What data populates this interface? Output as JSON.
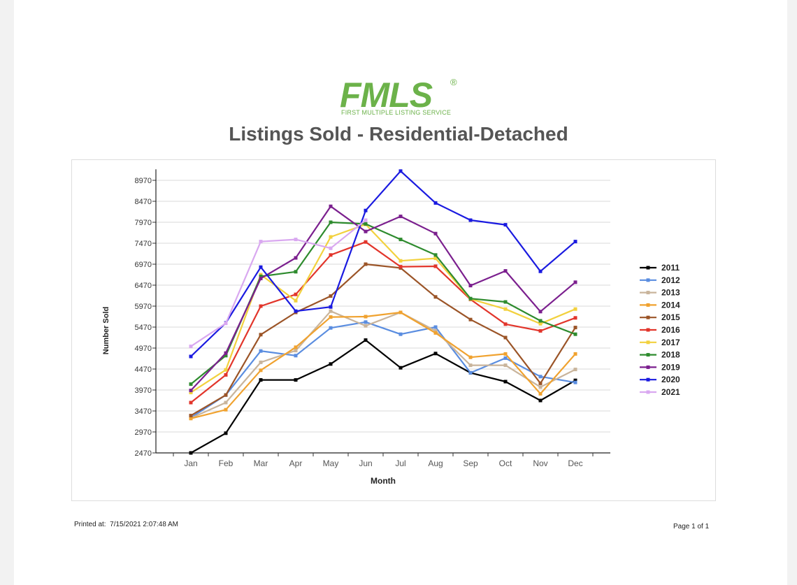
{
  "logo": {
    "name": "FMLS",
    "subtitle": "FIRST MULTIPLE LISTING SERVICE",
    "registered": "®"
  },
  "title": "Listings Sold - Residential-Detached",
  "footer": {
    "printed_label": "Printed at:",
    "printed_value": "7/15/2021 2:07:48 AM",
    "page": "Page 1 of 1"
  },
  "chart_data": {
    "type": "line",
    "title": "Listings Sold - Residential-Detached",
    "xlabel": "Month",
    "ylabel": "Number Sold",
    "categories": [
      "Jan",
      "Feb",
      "Mar",
      "Apr",
      "May",
      "Jun",
      "Jul",
      "Aug",
      "Sep",
      "Oct",
      "Nov",
      "Dec"
    ],
    "yticks": [
      2470,
      2970,
      3470,
      3970,
      4470,
      4970,
      5470,
      5970,
      6470,
      6970,
      7470,
      7970,
      8470,
      8970
    ],
    "ylim": [
      2470,
      9200
    ],
    "grid": true,
    "legend_position": "right",
    "series": [
      {
        "name": "2011",
        "color": "#000000",
        "values": [
          2470,
          2940,
          4210,
          4210,
          4590,
          5160,
          4500,
          4840,
          4380,
          4170,
          3720,
          4200
        ]
      },
      {
        "name": "2012",
        "color": "#5a8de0",
        "values": [
          3310,
          3850,
          4900,
          4790,
          5450,
          5590,
          5300,
          5470,
          4380,
          4730,
          4290,
          4150
        ]
      },
      {
        "name": "2013",
        "color": "#c9b49b",
        "values": [
          3300,
          3670,
          4630,
          4910,
          5850,
          5500,
          5820,
          5380,
          4560,
          4560,
          4040,
          4460
        ]
      },
      {
        "name": "2014",
        "color": "#f0a22f",
        "values": [
          3290,
          3500,
          4440,
          4990,
          5710,
          5720,
          5820,
          5330,
          4750,
          4830,
          3880,
          4830
        ]
      },
      {
        "name": "2015",
        "color": "#9b5427",
        "values": [
          3360,
          3850,
          5290,
          5820,
          6210,
          6970,
          6880,
          6190,
          5650,
          5220,
          4130,
          5460
        ]
      },
      {
        "name": "2016",
        "color": "#e2352b",
        "values": [
          3670,
          4330,
          5970,
          6250,
          7190,
          7500,
          6910,
          6920,
          6130,
          5540,
          5380,
          5690
        ]
      },
      {
        "name": "2017",
        "color": "#f2d13e",
        "values": [
          3910,
          4450,
          6720,
          6100,
          7620,
          7920,
          7050,
          7110,
          6140,
          5900,
          5550,
          5900
        ]
      },
      {
        "name": "2018",
        "color": "#2e8b2e",
        "values": [
          4110,
          4790,
          6680,
          6790,
          7970,
          7930,
          7560,
          7190,
          6150,
          6070,
          5620,
          5300
        ]
      },
      {
        "name": "2019",
        "color": "#7b1f8e",
        "values": [
          3960,
          4850,
          6630,
          7120,
          8350,
          7750,
          8110,
          7700,
          6460,
          6810,
          5840,
          6540
        ]
      },
      {
        "name": "2020",
        "color": "#1a1ae0",
        "values": [
          4770,
          5570,
          6900,
          5850,
          5950,
          8250,
          9190,
          8430,
          8020,
          7910,
          6800,
          7510
        ]
      },
      {
        "name": "2021",
        "color": "#d9a8f0",
        "values": [
          5010,
          5560,
          7510,
          7560,
          7350,
          8020,
          null,
          null,
          null,
          null,
          null,
          null
        ]
      }
    ]
  }
}
